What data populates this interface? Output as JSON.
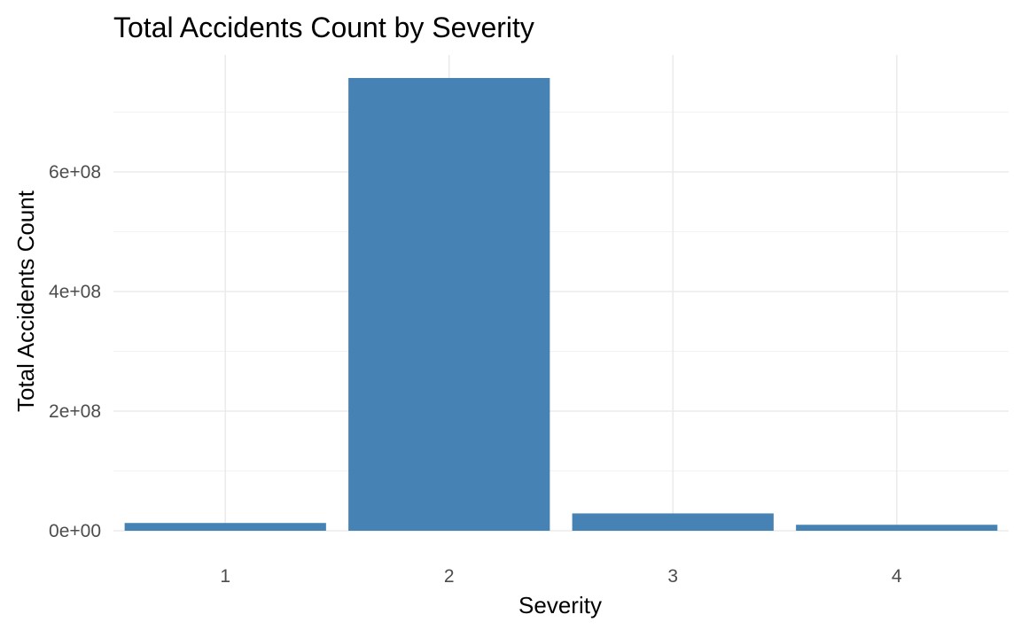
{
  "chart_data": {
    "type": "bar",
    "title": "Total Accidents Count by Severity",
    "xlabel": "Severity",
    "ylabel": "Total Accidents Count",
    "categories": [
      "1",
      "2",
      "3",
      "4"
    ],
    "values": [
      13000000,
      757000000,
      29000000,
      10000000
    ],
    "ylim": [
      0,
      757000000
    ],
    "yticks": [
      0,
      200000000,
      400000000,
      600000000
    ],
    "ytick_labels": [
      "0e+00",
      "2e+08",
      "4e+08",
      "6e+08"
    ],
    "bar_color": "#4682B4",
    "grid": true,
    "legend": "none"
  }
}
